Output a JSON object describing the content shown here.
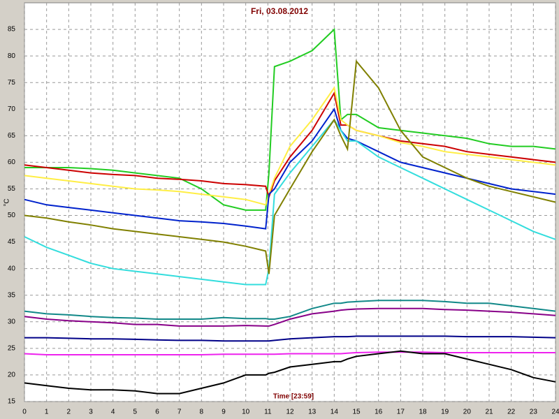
{
  "chart_data": {
    "type": "line",
    "title": "Fri, 03.08.2012",
    "x_label": "Time [23:59]",
    "y_label": "°C",
    "x": [
      0,
      1,
      2,
      3,
      4,
      5,
      6,
      7,
      8,
      9,
      10,
      10.9,
      11.05,
      11.3,
      12,
      13,
      14,
      14.3,
      14.6,
      15,
      16,
      17,
      18,
      19,
      20,
      21,
      22,
      23,
      24
    ],
    "xlim": [
      0,
      24
    ],
    "xticks": [
      0,
      1,
      2,
      3,
      4,
      5,
      6,
      7,
      8,
      9,
      10,
      11,
      12,
      13,
      14,
      15,
      16,
      17,
      18,
      19,
      20,
      21,
      22,
      23,
      24
    ],
    "ylim": [
      15,
      90
    ],
    "yticks": [
      15,
      20,
      25,
      30,
      35,
      40,
      45,
      50,
      55,
      60,
      65,
      70,
      75,
      80,
      85
    ],
    "grid": true,
    "series": [
      {
        "color": "#22cc22",
        "values": [
          59,
          59,
          59,
          58.8,
          58.5,
          58,
          57.5,
          57,
          55,
          52,
          51,
          51,
          58,
          78,
          79,
          81,
          85,
          68,
          69,
          69,
          66.5,
          66,
          65.5,
          65,
          64.5,
          63.5,
          63,
          63,
          62.5
        ]
      },
      {
        "color": "#cc0000",
        "values": [
          59.5,
          59,
          58.5,
          58,
          57.7,
          57.5,
          57,
          56.8,
          56.5,
          56,
          55.8,
          55.5,
          53.5,
          56.5,
          61,
          66,
          73,
          67,
          67,
          66,
          65,
          64,
          63.5,
          63,
          62,
          61.5,
          61,
          60.5,
          60
        ]
      },
      {
        "color": "#ffee44",
        "values": [
          57.5,
          57,
          56.5,
          56,
          55.5,
          55,
          54.8,
          54.5,
          54,
          53.5,
          53,
          52,
          54,
          57,
          63,
          68,
          74,
          68,
          67,
          66,
          65,
          63.7,
          63,
          62,
          61.5,
          61,
          60.5,
          60,
          59.5
        ]
      },
      {
        "color": "#0022cc",
        "values": [
          53,
          52,
          51.5,
          51,
          50.5,
          50,
          49.5,
          49,
          48.8,
          48.5,
          48,
          47.5,
          54,
          55,
          60,
          64,
          70,
          66,
          64.5,
          64,
          62,
          60,
          59,
          58,
          57,
          56,
          55,
          54.5,
          54
        ]
      },
      {
        "color": "#33dddd",
        "values": [
          46,
          44,
          42.5,
          41,
          40,
          39.5,
          39,
          38.5,
          38,
          37.5,
          37,
          37,
          40,
          54,
          58,
          63,
          68,
          66,
          64,
          64,
          61,
          59,
          57,
          55,
          53,
          51,
          49,
          47,
          45.5
        ]
      },
      {
        "color": "#808000",
        "values": [
          50,
          49.5,
          48.8,
          48.2,
          47.5,
          47,
          46.5,
          46,
          45.5,
          45,
          44.2,
          43.3,
          39,
          50,
          55,
          62,
          68,
          65,
          62.5,
          79,
          74,
          66,
          61,
          59,
          57,
          55.5,
          54.5,
          53.5,
          52.5
        ]
      },
      {
        "color": "#118888",
        "values": [
          32,
          31.5,
          31.3,
          31,
          30.8,
          30.7,
          30.5,
          30.5,
          30.5,
          30.8,
          30.6,
          30.6,
          30.5,
          30.5,
          31,
          32.5,
          33.5,
          33.5,
          33.7,
          33.8,
          34,
          34,
          34,
          33.8,
          33.5,
          33.5,
          33,
          32.5,
          32
        ]
      },
      {
        "color": "#880088",
        "values": [
          31,
          30.5,
          30.2,
          30,
          29.8,
          29.5,
          29.5,
          29.2,
          29.2,
          29.2,
          29.3,
          29.2,
          29.2,
          29.5,
          30.5,
          31.5,
          32,
          32.2,
          32.3,
          32.4,
          32.5,
          32.5,
          32.5,
          32.3,
          32.2,
          32,
          31.8,
          31.5,
          31.2
        ]
      },
      {
        "color": "#000088",
        "values": [
          27,
          27,
          26.9,
          26.8,
          26.8,
          26.7,
          26.6,
          26.5,
          26.5,
          26.4,
          26.4,
          26.4,
          26.4,
          26.5,
          26.8,
          27,
          27.2,
          27.2,
          27.2,
          27.3,
          27.3,
          27.3,
          27.3,
          27.3,
          27.2,
          27.2,
          27.2,
          27.1,
          27
        ]
      },
      {
        "color": "#ee22ee",
        "values": [
          24,
          23.8,
          23.8,
          23.8,
          23.8,
          23.8,
          23.8,
          23.8,
          23.8,
          23.9,
          23.9,
          23.9,
          23.9,
          23.9,
          24,
          24,
          24,
          24,
          24.1,
          24.2,
          24.3,
          24.3,
          24.3,
          24.2,
          24.2,
          24.2,
          24.2,
          24.2,
          24.2
        ]
      },
      {
        "color": "#000000",
        "values": [
          18.5,
          18,
          17.5,
          17.2,
          17.2,
          17,
          16.5,
          16.5,
          17.5,
          18.5,
          20,
          20,
          20.3,
          20.5,
          21.5,
          22,
          22.5,
          22.5,
          23,
          23.5,
          24,
          24.5,
          24,
          24,
          23,
          22,
          21,
          19.5,
          18.7
        ]
      }
    ]
  }
}
